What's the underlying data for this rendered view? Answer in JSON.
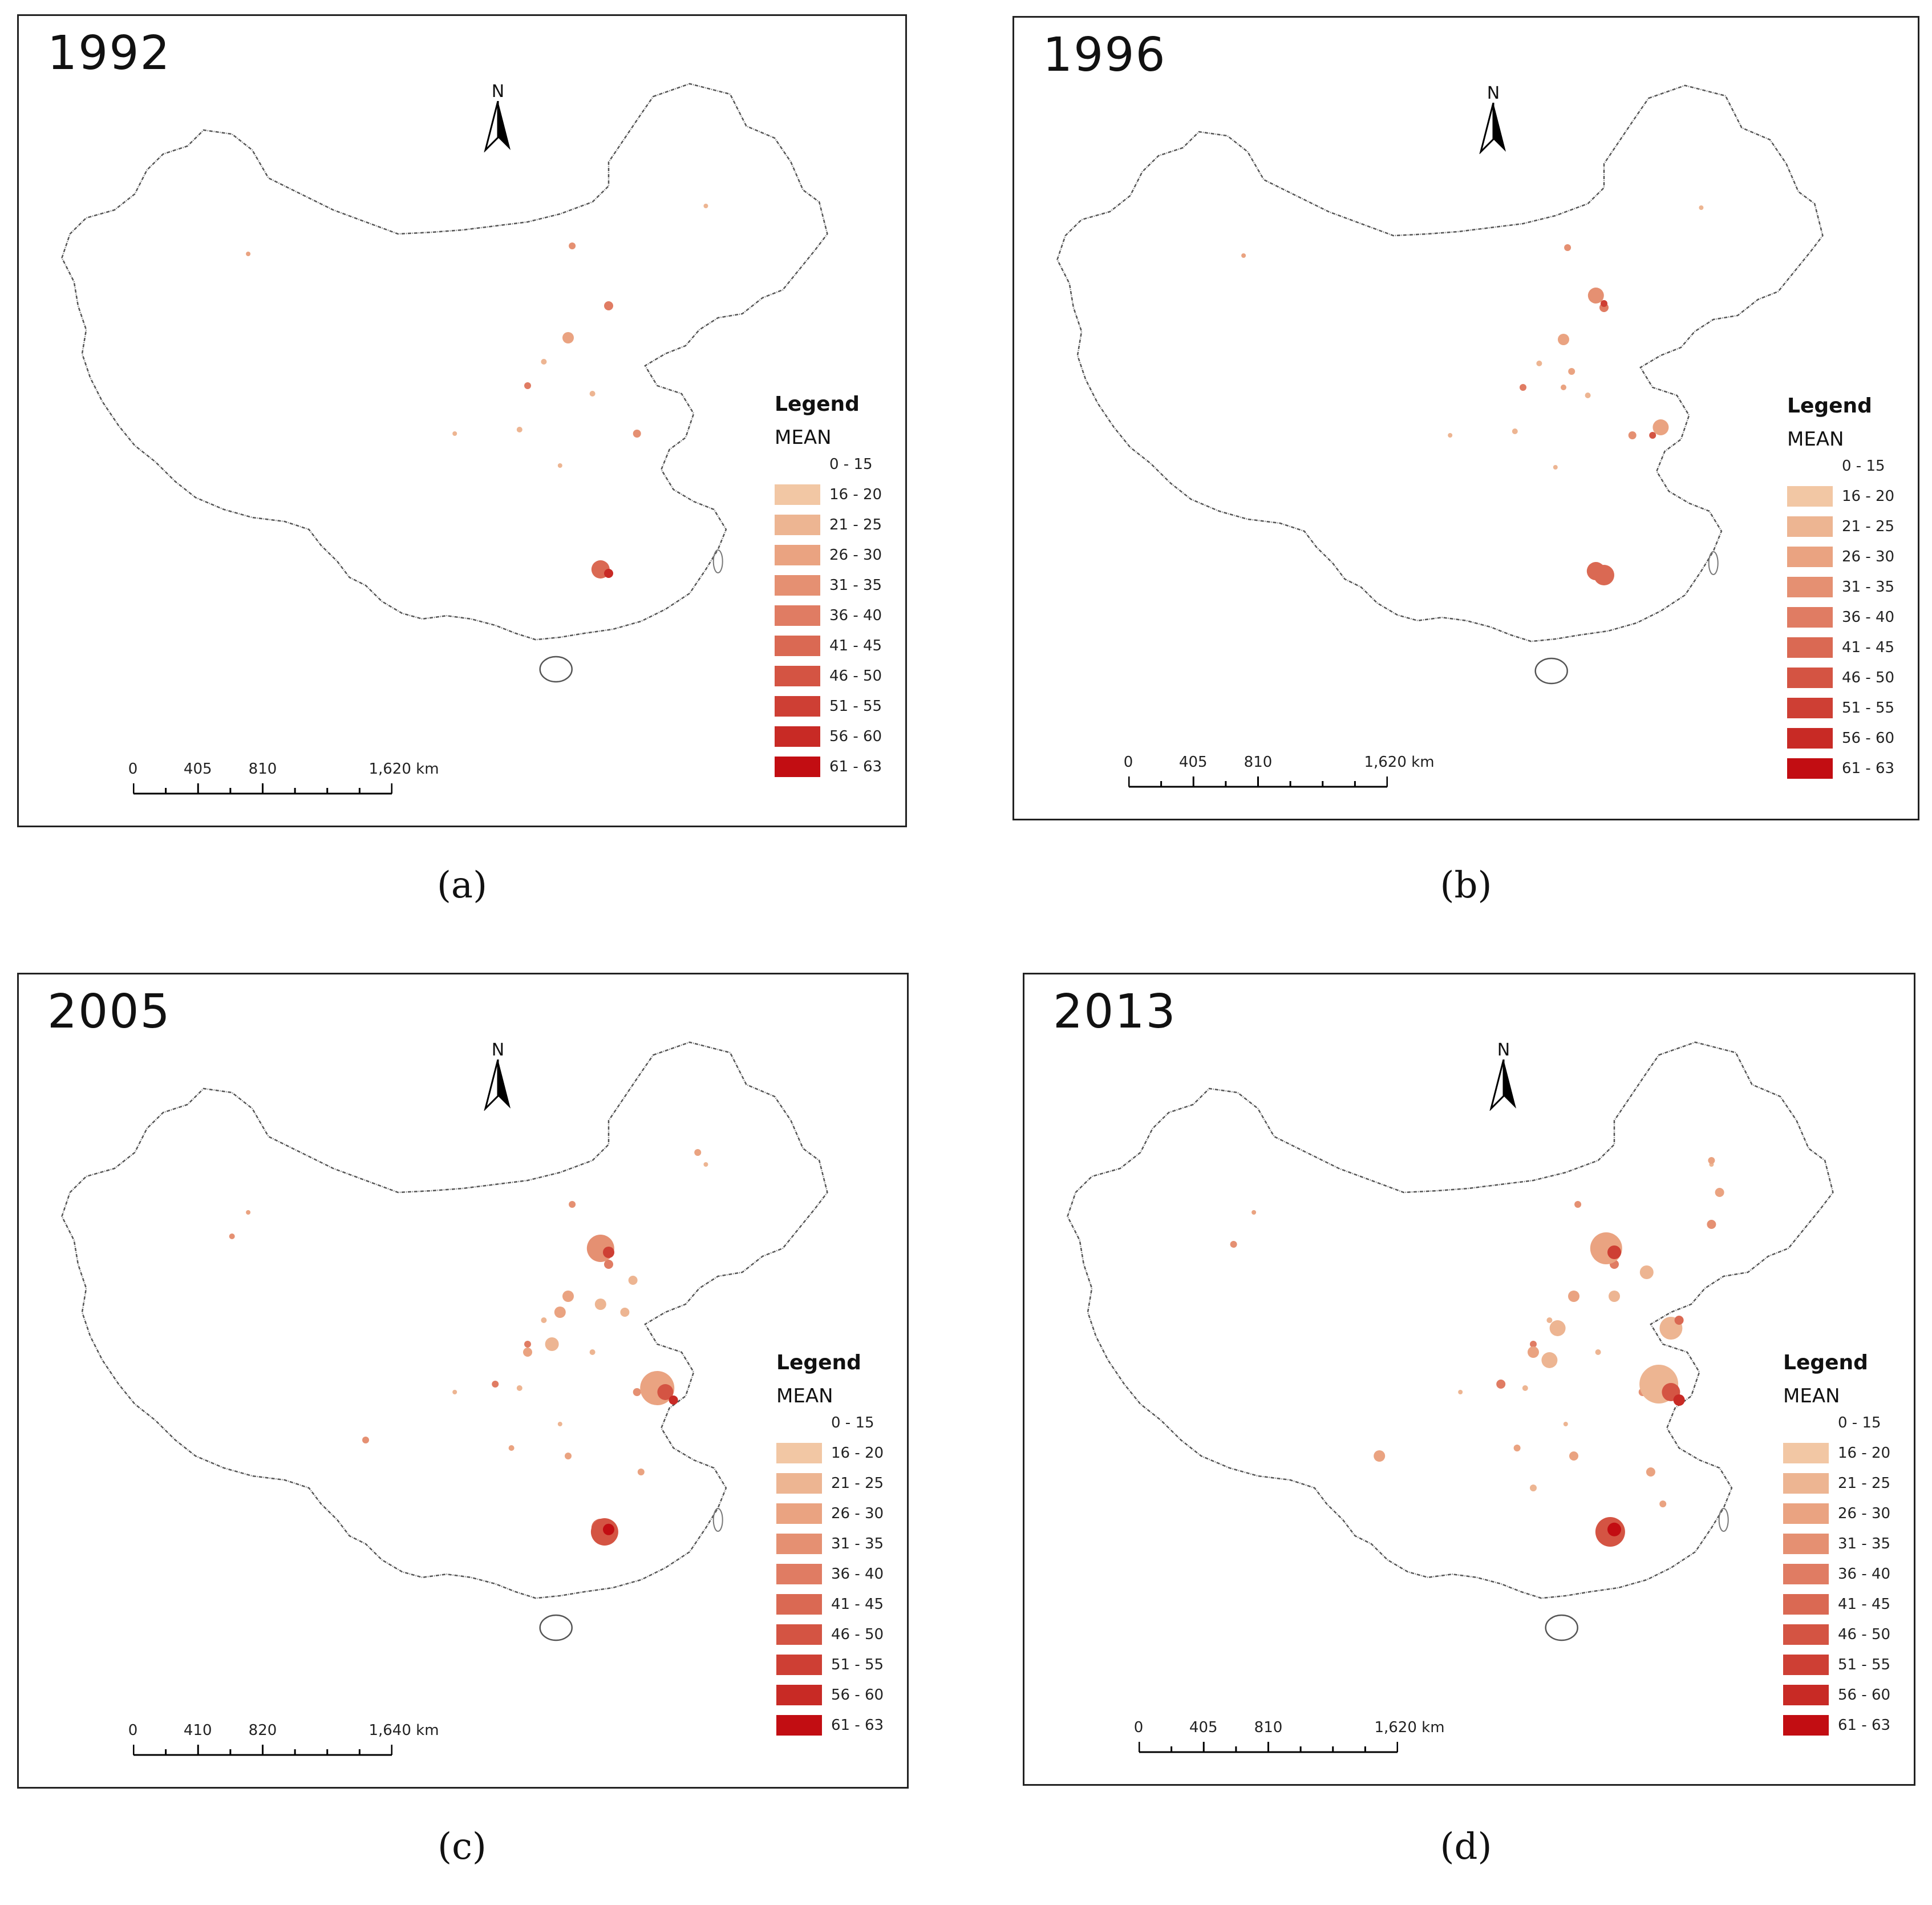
{
  "legend_classes": [
    {
      "label": "0 - 15",
      "color": "#ffffff"
    },
    {
      "label": "16 - 20",
      "color": "#f2c7a4"
    },
    {
      "label": "21 - 25",
      "color": "#edb592"
    },
    {
      "label": "26 - 30",
      "color": "#eaa381"
    },
    {
      "label": "31 - 35",
      "color": "#e59072"
    },
    {
      "label": "36 - 40",
      "color": "#e07c63"
    },
    {
      "label": "41 - 45",
      "color": "#da6953"
    },
    {
      "label": "46 - 50",
      "color": "#d45443"
    },
    {
      "label": "51 - 55",
      "color": "#ce3f34"
    },
    {
      "label": "56 - 60",
      "color": "#c82a25"
    },
    {
      "label": "61 - 63",
      "color": "#c20d12"
    }
  ],
  "panels": [
    {
      "year": "1992",
      "caption": "(a)",
      "legend_title": "Legend",
      "legend_field": "MEAN",
      "north_label": "N",
      "scale_labels": [
        "0",
        "405",
        "810",
        "1,620 km"
      ]
    },
    {
      "year": "1996",
      "caption": "(b)",
      "legend_title": "Legend",
      "legend_field": "MEAN",
      "north_label": "N",
      "scale_labels": [
        "0",
        "405",
        "810",
        "1,620 km"
      ]
    },
    {
      "year": "2005",
      "caption": "(c)",
      "legend_title": "Legend",
      "legend_field": "MEAN",
      "north_label": "N",
      "scale_labels": [
        "0",
        "410",
        "820",
        "1,640 km"
      ]
    },
    {
      "year": "2013",
      "caption": "(d)",
      "legend_title": "Legend",
      "legend_field": "MEAN",
      "north_label": "N",
      "scale_labels": [
        "0",
        "405",
        "810",
        "1,620 km"
      ]
    }
  ]
}
